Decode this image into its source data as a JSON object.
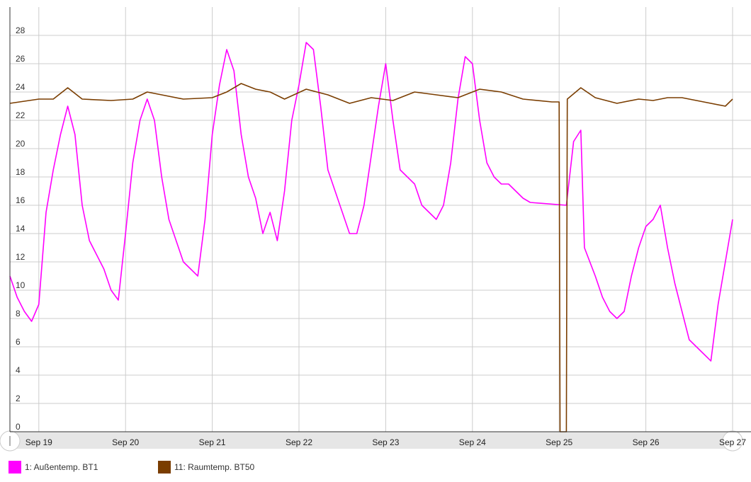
{
  "chart_data": {
    "type": "line",
    "grid": true,
    "ylim": [
      0,
      30
    ],
    "yticks": [
      0,
      2,
      4,
      6,
      8,
      10,
      12,
      14,
      16,
      18,
      20,
      22,
      24,
      26,
      28
    ],
    "x_range": [
      "Sep 18 16:00",
      "Sep 27 00:00"
    ],
    "x_tick_labels": [
      "Sep 19",
      "Sep 20",
      "Sep 21",
      "Sep 22",
      "Sep 23",
      "Sep 24",
      "Sep 25",
      "Sep 26",
      "Sep 27"
    ],
    "legend_position": "bottom",
    "series": [
      {
        "name": "1: Außentemp. BT1",
        "color": "#ff00ff",
        "points": [
          [
            "Sep 18 16:00",
            11.0
          ],
          [
            "Sep 18 18:00",
            9.5
          ],
          [
            "Sep 18 20:00",
            8.5
          ],
          [
            "Sep 18 22:00",
            7.8
          ],
          [
            "Sep 19 00:00",
            9.0
          ],
          [
            "Sep 19 02:00",
            15.5
          ],
          [
            "Sep 19 04:00",
            18.5
          ],
          [
            "Sep 19 06:00",
            21.0
          ],
          [
            "Sep 19 08:00",
            23.0
          ],
          [
            "Sep 19 10:00",
            21.0
          ],
          [
            "Sep 19 12:00",
            16.0
          ],
          [
            "Sep 19 14:00",
            13.5
          ],
          [
            "Sep 19 16:00",
            12.5
          ],
          [
            "Sep 19 18:00",
            11.5
          ],
          [
            "Sep 19 20:00",
            10.0
          ],
          [
            "Sep 19 22:00",
            9.3
          ],
          [
            "Sep 20 00:00",
            14.0
          ],
          [
            "Sep 20 02:00",
            19.0
          ],
          [
            "Sep 20 04:00",
            22.0
          ],
          [
            "Sep 20 06:00",
            23.5
          ],
          [
            "Sep 20 08:00",
            22.0
          ],
          [
            "Sep 20 10:00",
            18.0
          ],
          [
            "Sep 20 12:00",
            15.0
          ],
          [
            "Sep 20 14:00",
            13.5
          ],
          [
            "Sep 20 16:00",
            12.0
          ],
          [
            "Sep 20 18:00",
            11.5
          ],
          [
            "Sep 20 20:00",
            11.0
          ],
          [
            "Sep 20 22:00",
            15.0
          ],
          [
            "Sep 21 00:00",
            21.0
          ],
          [
            "Sep 21 02:00",
            24.5
          ],
          [
            "Sep 21 04:00",
            27.0
          ],
          [
            "Sep 21 06:00",
            25.5
          ],
          [
            "Sep 21 08:00",
            21.0
          ],
          [
            "Sep 21 10:00",
            18.0
          ],
          [
            "Sep 21 12:00",
            16.5
          ],
          [
            "Sep 21 14:00",
            14.0
          ],
          [
            "Sep 21 16:00",
            15.5
          ],
          [
            "Sep 21 18:00",
            13.5
          ],
          [
            "Sep 21 20:00",
            17.0
          ],
          [
            "Sep 21 22:00",
            22.0
          ],
          [
            "Sep 22 00:00",
            24.5
          ],
          [
            "Sep 22 02:00",
            27.5
          ],
          [
            "Sep 22 04:00",
            27.0
          ],
          [
            "Sep 22 06:00",
            23.0
          ],
          [
            "Sep 22 08:00",
            18.5
          ],
          [
            "Sep 22 10:00",
            17.0
          ],
          [
            "Sep 22 12:00",
            15.5
          ],
          [
            "Sep 22 14:00",
            14.0
          ],
          [
            "Sep 22 16:00",
            14.0
          ],
          [
            "Sep 22 18:00",
            16.0
          ],
          [
            "Sep 22 20:00",
            19.5
          ],
          [
            "Sep 22 22:00",
            23.0
          ],
          [
            "Sep 23 00:00",
            26.0
          ],
          [
            "Sep 23 02:00",
            22.0
          ],
          [
            "Sep 23 04:00",
            18.5
          ],
          [
            "Sep 23 06:00",
            18.0
          ],
          [
            "Sep 23 08:00",
            17.5
          ],
          [
            "Sep 23 10:00",
            16.0
          ],
          [
            "Sep 23 12:00",
            15.5
          ],
          [
            "Sep 23 14:00",
            15.0
          ],
          [
            "Sep 23 16:00",
            16.0
          ],
          [
            "Sep 23 18:00",
            19.0
          ],
          [
            "Sep 23 20:00",
            23.5
          ],
          [
            "Sep 23 22:00",
            26.5
          ],
          [
            "Sep 24 00:00",
            26.0
          ],
          [
            "Sep 24 02:00",
            22.0
          ],
          [
            "Sep 24 04:00",
            19.0
          ],
          [
            "Sep 24 06:00",
            18.0
          ],
          [
            "Sep 24 08:00",
            17.5
          ],
          [
            "Sep 24 10:00",
            17.5
          ],
          [
            "Sep 24 12:00",
            17.0
          ],
          [
            "Sep 24 14:00",
            16.5
          ],
          [
            "Sep 24 16:00",
            16.2
          ],
          [
            "Sep 25 02:00",
            16.0
          ],
          [
            "Sep 25 04:00",
            20.5
          ],
          [
            "Sep 25 06:00",
            21.3
          ],
          [
            "Sep 25 07:00",
            13.0
          ],
          [
            "Sep 25 10:00",
            11.0
          ],
          [
            "Sep 25 12:00",
            9.5
          ],
          [
            "Sep 25 14:00",
            8.5
          ],
          [
            "Sep 25 16:00",
            8.0
          ],
          [
            "Sep 25 18:00",
            8.5
          ],
          [
            "Sep 25 20:00",
            11.0
          ],
          [
            "Sep 25 22:00",
            13.0
          ],
          [
            "Sep 26 00:00",
            14.5
          ],
          [
            "Sep 26 02:00",
            15.0
          ],
          [
            "Sep 26 04:00",
            16.0
          ],
          [
            "Sep 26 06:00",
            13.0
          ],
          [
            "Sep 26 08:00",
            10.5
          ],
          [
            "Sep 26 10:00",
            8.5
          ],
          [
            "Sep 26 12:00",
            6.5
          ],
          [
            "Sep 26 14:00",
            6.0
          ],
          [
            "Sep 26 16:00",
            5.5
          ],
          [
            "Sep 26 18:00",
            5.0
          ],
          [
            "Sep 26 20:00",
            9.0
          ],
          [
            "Sep 26 22:00",
            12.0
          ],
          [
            "Sep 27 00:00",
            15.0
          ]
        ]
      },
      {
        "name": "11: Raumtemp. BT50",
        "color": "#7a3d00",
        "points": [
          [
            "Sep 18 16:00",
            23.2
          ],
          [
            "Sep 19 00:00",
            23.5
          ],
          [
            "Sep 19 04:00",
            23.5
          ],
          [
            "Sep 19 08:00",
            24.3
          ],
          [
            "Sep 19 12:00",
            23.5
          ],
          [
            "Sep 19 20:00",
            23.4
          ],
          [
            "Sep 20 02:00",
            23.5
          ],
          [
            "Sep 20 06:00",
            24.0
          ],
          [
            "Sep 20 10:00",
            23.8
          ],
          [
            "Sep 20 16:00",
            23.5
          ],
          [
            "Sep 21 00:00",
            23.6
          ],
          [
            "Sep 21 04:00",
            24.0
          ],
          [
            "Sep 21 08:00",
            24.6
          ],
          [
            "Sep 21 12:00",
            24.2
          ],
          [
            "Sep 21 16:00",
            24.0
          ],
          [
            "Sep 21 20:00",
            23.5
          ],
          [
            "Sep 22 02:00",
            24.2
          ],
          [
            "Sep 22 08:00",
            23.8
          ],
          [
            "Sep 22 14:00",
            23.2
          ],
          [
            "Sep 22 20:00",
            23.6
          ],
          [
            "Sep 23 02:00",
            23.4
          ],
          [
            "Sep 23 08:00",
            24.0
          ],
          [
            "Sep 23 14:00",
            23.8
          ],
          [
            "Sep 23 20:00",
            23.6
          ],
          [
            "Sep 24 02:00",
            24.2
          ],
          [
            "Sep 24 08:00",
            24.0
          ],
          [
            "Sep 24 14:00",
            23.5
          ],
          [
            "Sep 24 22:00",
            23.3
          ],
          [
            "Sep 25 00:00",
            23.3
          ],
          [
            "Sep 25 00:15",
            0
          ],
          [
            "Sep 25 02:00",
            0
          ],
          [
            "Sep 25 02:15",
            23.5
          ],
          [
            "Sep 25 06:00",
            24.3
          ],
          [
            "Sep 25 10:00",
            23.6
          ],
          [
            "Sep 25 16:00",
            23.2
          ],
          [
            "Sep 25 22:00",
            23.5
          ],
          [
            "Sep 26 02:00",
            23.4
          ],
          [
            "Sep 26 06:00",
            23.6
          ],
          [
            "Sep 26 10:00",
            23.6
          ],
          [
            "Sep 26 16:00",
            23.3
          ],
          [
            "Sep 26 22:00",
            23.0
          ],
          [
            "Sep 27 00:00",
            23.5
          ]
        ]
      }
    ]
  },
  "colors": {
    "grid": "#cccccc",
    "axis": "#333333",
    "navigator_bar": "#e6e6e6"
  }
}
